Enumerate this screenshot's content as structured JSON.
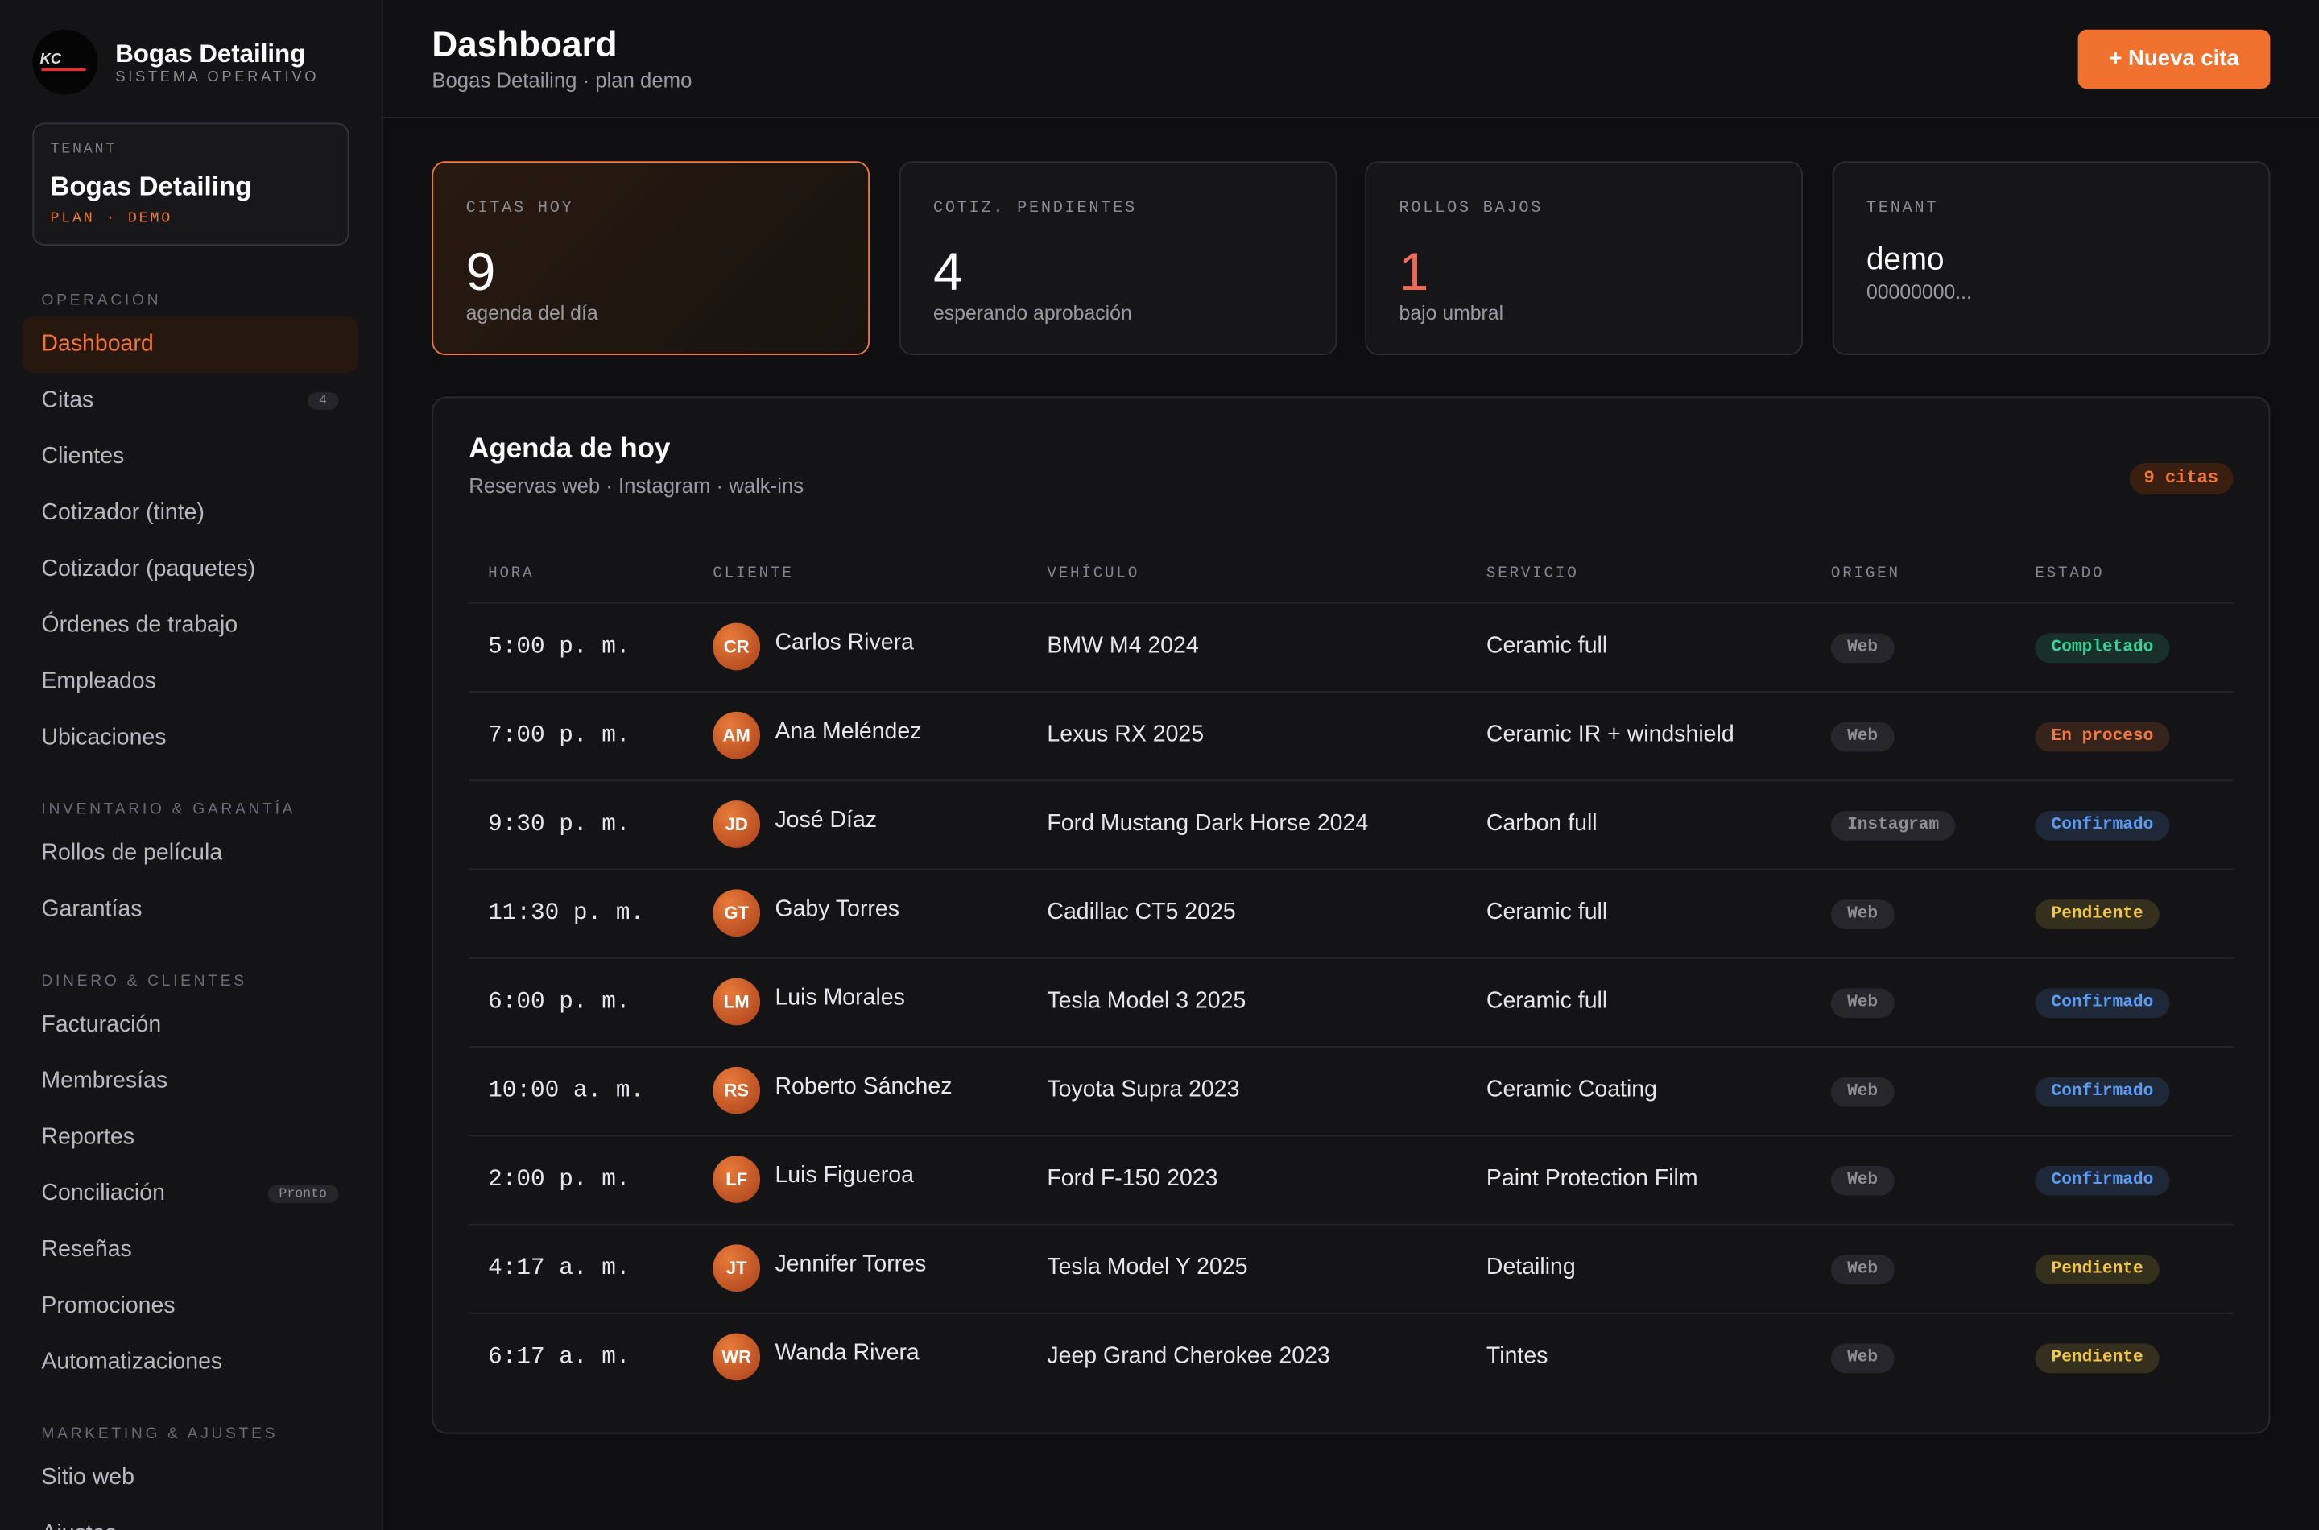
{
  "brand": {
    "name": "Bogas Detailing",
    "subtitle": "SISTEMA OPERATIVO"
  },
  "tenant_card": {
    "label": "TENANT",
    "name": "Bogas Detailing",
    "plan": "PLAN · DEMO"
  },
  "nav": [
    {
      "title": "OPERACIÓN",
      "items": [
        {
          "label": "Dashboard",
          "active": true
        },
        {
          "label": "Citas",
          "badge": 4
        },
        {
          "label": "Clientes"
        },
        {
          "label": "Cotizador (tinte)"
        },
        {
          "label": "Cotizador (paquetes)"
        },
        {
          "label": "Órdenes de trabajo"
        },
        {
          "label": "Empleados"
        },
        {
          "label": "Ubicaciones"
        }
      ]
    },
    {
      "title": "INVENTARIO & GARANTÍA",
      "items": [
        {
          "label": "Rollos de película"
        },
        {
          "label": "Garantías"
        }
      ]
    },
    {
      "title": "DINERO & CLIENTES",
      "items": [
        {
          "label": "Facturación"
        },
        {
          "label": "Membresías"
        },
        {
          "label": "Reportes"
        },
        {
          "label": "Conciliación",
          "badge": "Pronto"
        },
        {
          "label": "Reseñas"
        },
        {
          "label": "Promociones"
        },
        {
          "label": "Automatizaciones"
        }
      ]
    },
    {
      "title": "MARKETING & AJUSTES",
      "items": [
        {
          "label": "Sitio web"
        },
        {
          "label": "Ajustes"
        }
      ]
    }
  ],
  "header": {
    "title": "Dashboard",
    "subtitle": "Bogas Detailing · plan demo",
    "button": "+ Nueva cita"
  },
  "stats": [
    {
      "label": "CITAS HOY",
      "value": 9,
      "note": "agenda del día",
      "highlighted": true,
      "color": "#ffffff"
    },
    {
      "label": "COTIZ. PENDIENTES",
      "value": 4,
      "note": "esperando aprobación",
      "color": "#ffffff"
    },
    {
      "label": "ROLLOS BAJOS",
      "value": 1,
      "note": "bajo umbral",
      "color": "#f06a5a"
    },
    {
      "label": "TENANT",
      "value": "demo",
      "note": "00000000...",
      "color": "#ffffff"
    }
  ],
  "agenda": {
    "title": "Agenda de hoy",
    "subtitle": "Reservas web · Instagram · walk-ins",
    "badge": "9 citas",
    "columns": [
      "HORA",
      "CLIENTE",
      "VEHÍCULO",
      "SERVICIO",
      "ORIGEN",
      "ESTADO"
    ],
    "rows": [
      {
        "time": "5:00 p. m.",
        "initials": "CR",
        "client": "Carlos Rivera",
        "vehicle": "BMW M4 2024",
        "service": "Ceramic full",
        "origin": "Web",
        "status": {
          "label": "Completado",
          "color": "#34d399"
        }
      },
      {
        "time": "7:00 p. m.",
        "initials": "AM",
        "client": "Ana Meléndez",
        "vehicle": "Lexus RX 2025",
        "service": "Ceramic IR + windshield",
        "origin": "Web",
        "status": {
          "label": "En proceso",
          "color": "#f5793a"
        }
      },
      {
        "time": "9:30 p. m.",
        "initials": "JD",
        "client": "José Díaz",
        "vehicle": "Ford Mustang Dark Horse 2024",
        "service": "Carbon full",
        "origin": "Instagram",
        "status": {
          "label": "Confirmado",
          "color": "#5b9cf5"
        }
      },
      {
        "time": "11:30 p. m.",
        "initials": "GT",
        "client": "Gaby Torres",
        "vehicle": "Cadillac CT5 2025",
        "service": "Ceramic full",
        "origin": "Web",
        "status": {
          "label": "Pendiente",
          "color": "#f2c744"
        }
      },
      {
        "time": "6:00 p. m.",
        "initials": "LM",
        "client": "Luis Morales",
        "vehicle": "Tesla Model 3 2025",
        "service": "Ceramic full",
        "origin": "Web",
        "status": {
          "label": "Confirmado",
          "color": "#5b9cf5"
        }
      },
      {
        "time": "10:00 a. m.",
        "initials": "RS",
        "client": "Roberto Sánchez",
        "vehicle": "Toyota Supra 2023",
        "service": "Ceramic Coating",
        "origin": "Web",
        "status": {
          "label": "Confirmado",
          "color": "#5b9cf5"
        }
      },
      {
        "time": "2:00 p. m.",
        "initials": "LF",
        "client": "Luis Figueroa",
        "vehicle": "Ford F-150 2023",
        "service": "Paint Protection Film",
        "origin": "Web",
        "status": {
          "label": "Confirmado",
          "color": "#5b9cf5"
        }
      },
      {
        "time": "4:17 a. m.",
        "initials": "JT",
        "client": "Jennifer Torres",
        "vehicle": "Tesla Model Y 2025",
        "service": "Detailing",
        "origin": "Web",
        "status": {
          "label": "Pendiente",
          "color": "#f2c744"
        }
      },
      {
        "time": "6:17 a. m.",
        "initials": "WR",
        "client": "Wanda Rivera",
        "vehicle": "Jeep Grand Cherokee 2023",
        "service": "Tintes",
        "origin": "Web",
        "status": {
          "label": "Pendiente",
          "color": "#f2c744"
        }
      }
    ]
  }
}
